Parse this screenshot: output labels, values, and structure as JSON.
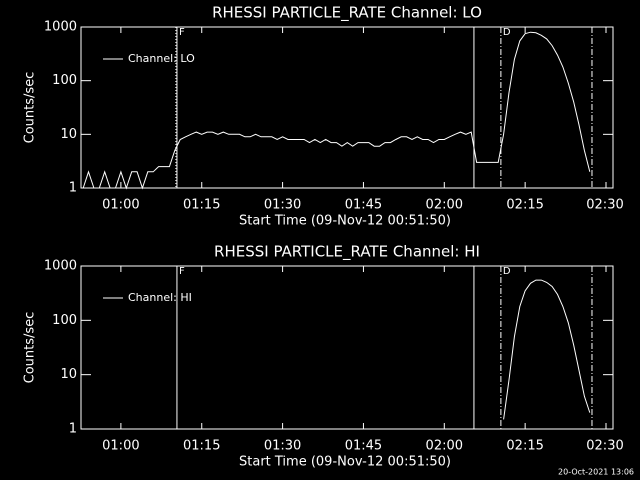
{
  "chart_data": [
    {
      "type": "line",
      "title": "RHESSI PARTICLE_RATE Channel: LO",
      "xlabel": "Start Time (09-Nov-12 00:51:50)",
      "ylabel": "Counts/sec",
      "log_y": true,
      "color": "#ffffff",
      "xlim": [
        52.6,
        151.3
      ],
      "ylim": [
        1,
        1000
      ],
      "xticks": [
        {
          "value": 60,
          "label": "01:00"
        },
        {
          "value": 75,
          "label": "01:15"
        },
        {
          "value": 90,
          "label": "01:30"
        },
        {
          "value": 105,
          "label": "01:45"
        },
        {
          "value": 120,
          "label": "02:00"
        },
        {
          "value": 135,
          "label": "02:15"
        },
        {
          "value": 150,
          "label": "02:30"
        }
      ],
      "yticks": [
        1,
        10,
        100,
        1000
      ],
      "vlines": [
        {
          "x": 70.2,
          "style": "dotted"
        },
        {
          "x": 70.4,
          "style": "solid"
        },
        {
          "x": 125.5,
          "style": "solid"
        },
        {
          "x": 130.5,
          "style": "dashdot"
        },
        {
          "x": 147.4,
          "style": "dashdot"
        }
      ],
      "annotations": [
        {
          "text": "F",
          "x": 70.4
        },
        {
          "text": "D",
          "x": 130.5
        }
      ],
      "x": [
        53,
        54,
        55,
        56,
        57,
        58,
        59,
        60,
        61,
        62,
        63,
        64,
        65,
        66,
        67,
        68,
        69,
        70,
        71,
        72,
        73,
        74,
        75,
        76,
        77,
        78,
        79,
        80,
        81,
        82,
        83,
        84,
        85,
        86,
        87,
        88,
        89,
        90,
        91,
        92,
        93,
        94,
        95,
        96,
        97,
        98,
        99,
        100,
        101,
        102,
        103,
        104,
        105,
        106,
        107,
        108,
        109,
        110,
        111,
        112,
        113,
        114,
        115,
        116,
        117,
        118,
        119,
        120,
        121,
        122,
        123,
        124,
        125,
        126,
        127,
        128,
        129,
        130,
        131,
        132,
        133,
        134,
        135,
        136,
        137,
        138,
        139,
        140,
        141,
        142,
        143,
        144,
        145,
        146,
        147
      ],
      "series": [
        {
          "name": "Channel: LO",
          "values": [
            1,
            2,
            1,
            1,
            2,
            1,
            1,
            2,
            1,
            2,
            2,
            1,
            2,
            2,
            2.5,
            2.5,
            2.5,
            5,
            8,
            9,
            10,
            11,
            10,
            11,
            11,
            10,
            11,
            10,
            10,
            10,
            9,
            9,
            10,
            9,
            9,
            9,
            8,
            9,
            8,
            8,
            8,
            8,
            7,
            8,
            7,
            8,
            7,
            7,
            6,
            7,
            6,
            7,
            7,
            7,
            6,
            6,
            7,
            7,
            8,
            9,
            9,
            8,
            9,
            8,
            8,
            7,
            8,
            8,
            9,
            10,
            11,
            10,
            11,
            3,
            3,
            3,
            3,
            3,
            10,
            60,
            250,
            550,
            750,
            800,
            780,
            700,
            600,
            450,
            300,
            180,
            90,
            40,
            15,
            5,
            2
          ]
        }
      ]
    },
    {
      "type": "line",
      "title": "RHESSI PARTICLE_RATE Channel: HI",
      "xlabel": "Start Time (09-Nov-12 00:51:50)",
      "ylabel": "Counts/sec",
      "log_y": true,
      "color": "#ffffff",
      "xlim": [
        52.6,
        151.3
      ],
      "ylim": [
        1,
        1000
      ],
      "xticks": [
        {
          "value": 60,
          "label": "01:00"
        },
        {
          "value": 75,
          "label": "01:15"
        },
        {
          "value": 90,
          "label": "01:30"
        },
        {
          "value": 105,
          "label": "01:45"
        },
        {
          "value": 120,
          "label": "02:00"
        },
        {
          "value": 135,
          "label": "02:15"
        },
        {
          "value": 150,
          "label": "02:30"
        }
      ],
      "yticks": [
        1,
        10,
        100,
        1000
      ],
      "vlines": [
        {
          "x": 70.4,
          "style": "solid"
        },
        {
          "x": 125.5,
          "style": "solid"
        },
        {
          "x": 130.5,
          "style": "dashdot"
        },
        {
          "x": 147.4,
          "style": "dashdot"
        }
      ],
      "annotations": [
        {
          "text": "F",
          "x": 70.4
        },
        {
          "text": "D",
          "x": 130.5
        }
      ],
      "x": [
        131,
        132,
        133,
        134,
        135,
        136,
        137,
        138,
        139,
        140,
        141,
        142,
        143,
        144,
        145,
        146,
        147
      ],
      "series": [
        {
          "name": "Channel: HI",
          "values": [
            1.5,
            8,
            50,
            180,
            350,
            480,
            550,
            550,
            500,
            420,
            300,
            180,
            90,
            35,
            12,
            4,
            2
          ]
        }
      ]
    }
  ],
  "footer": "20-Oct-2021 13:06"
}
